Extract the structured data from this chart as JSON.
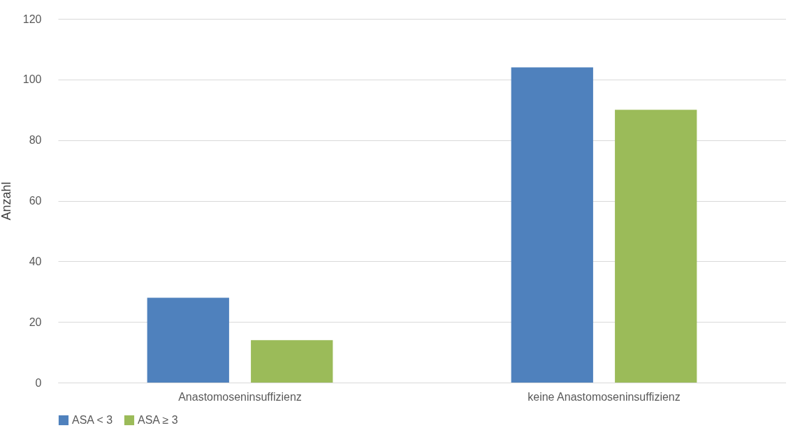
{
  "chart_data": {
    "type": "bar",
    "ylabel": "Anzahl",
    "categories": [
      "Anastomoseninsuffizienz",
      "keine Anastomoseninsuffizienz"
    ],
    "series": [
      {
        "name": "ASA < 3",
        "color": "#4f81bd",
        "values": [
          28,
          104
        ]
      },
      {
        "name": "ASA ≥ 3",
        "color": "#9bbb59",
        "values": [
          14,
          90
        ]
      }
    ],
    "ylim": [
      0,
      120
    ],
    "yticks": [
      0,
      20,
      40,
      60,
      80,
      100,
      120
    ],
    "grid": "y",
    "legend": "bottom"
  }
}
